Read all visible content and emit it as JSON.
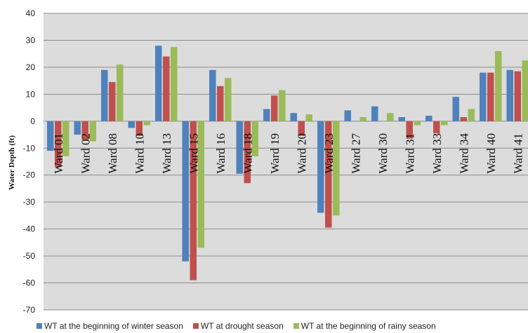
{
  "chart_data": {
    "type": "bar",
    "title": "",
    "xlabel": "",
    "ylabel": "Water Depth (ft)",
    "ylim": [
      -70,
      40
    ],
    "yticks": [
      40,
      30,
      20,
      10,
      0,
      -10,
      -20,
      -30,
      -40,
      -50,
      -60,
      -70
    ],
    "grid": true,
    "legend_position": "bottom",
    "categories": [
      "Ward 01",
      "Ward 02",
      "Ward 08",
      "Ward 10",
      "Ward 13",
      "Ward 15",
      "Ward 16",
      "Ward 18",
      "Ward 19",
      "Ward 20",
      "Ward 23",
      "Ward 27",
      "Ward 30",
      "Ward 31",
      "Ward 33",
      "Ward 34",
      "Ward 40",
      "Ward 41"
    ],
    "series": [
      {
        "name": "WT at the beginning of winter season",
        "color": "#4F81BD",
        "values": [
          -11,
          -5,
          19,
          -2.5,
          28,
          -52,
          19,
          -19.5,
          4.5,
          3,
          -34,
          4,
          5.5,
          1.5,
          2,
          9,
          18,
          19
        ]
      },
      {
        "name": "WT at drought season",
        "color": "#C0504D",
        "values": [
          -17,
          -7,
          14.5,
          -5.5,
          24,
          -59,
          13,
          -23,
          9.5,
          -5.5,
          -39.5,
          0,
          0,
          -6.5,
          -4.5,
          1.5,
          18,
          18.5
        ]
      },
      {
        "name": "WT at the beginning of rainy season",
        "color": "#9BBB59",
        "values": [
          -13,
          -7.5,
          21,
          -1.5,
          27.5,
          -47,
          16,
          -13,
          11.5,
          2.5,
          -35,
          1.5,
          3,
          -1.5,
          -1.5,
          4.5,
          26,
          22.5
        ]
      }
    ]
  }
}
